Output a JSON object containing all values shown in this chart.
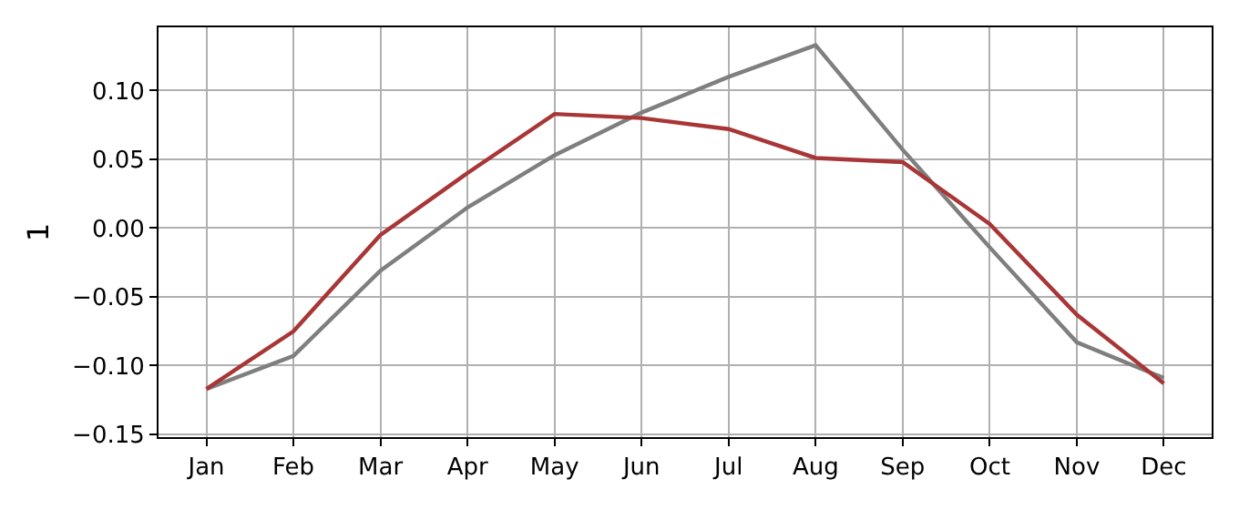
{
  "chart_data": {
    "type": "line",
    "ylabel": "1",
    "categories": [
      "Jan",
      "Feb",
      "Mar",
      "Apr",
      "May",
      "Jun",
      "Jul",
      "Aug",
      "Sep",
      "Oct",
      "Nov",
      "Dec"
    ],
    "series": [
      {
        "color": "#7f7f7f",
        "values": [
          -0.117,
          -0.093,
          -0.031,
          0.015,
          0.053,
          0.084,
          0.11,
          0.133,
          0.057,
          -0.014,
          -0.083,
          -0.109
        ]
      },
      {
        "color": "#a83636",
        "values": [
          -0.117,
          -0.075,
          -0.005,
          0.04,
          0.083,
          0.08,
          0.072,
          0.051,
          0.048,
          0.003,
          -0.063,
          -0.113
        ]
      }
    ],
    "ylim": [
      -0.152,
      0.146
    ],
    "yticks": [
      {
        "value": -0.15,
        "label": "−0.15"
      },
      {
        "value": -0.1,
        "label": "−0.10"
      },
      {
        "value": -0.05,
        "label": "−0.05"
      },
      {
        "value": 0,
        "label": "0.00"
      },
      {
        "value": 0.05,
        "label": "0.05"
      },
      {
        "value": 0.1,
        "label": "0.10"
      }
    ],
    "grid": true,
    "marker": "none",
    "line_style": "solid"
  }
}
